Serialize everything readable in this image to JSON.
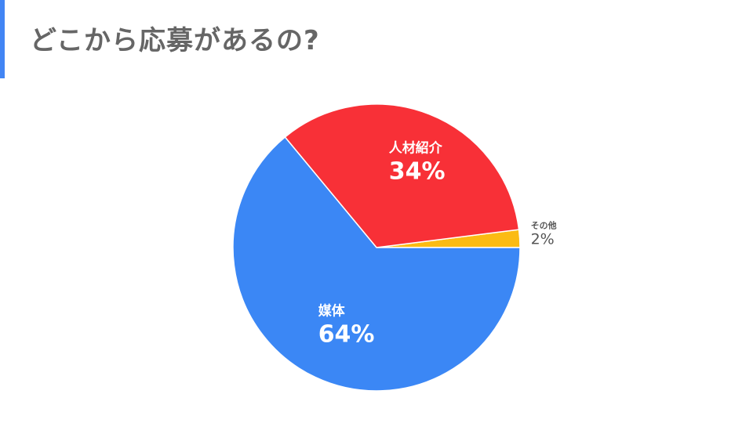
{
  "title": "どこから応募があるの?",
  "colors": {
    "accent": "#4285f4",
    "title_text": "#666666",
    "media": "#3b87f5",
    "agency": "#f83037",
    "other": "#fbbb13"
  },
  "chart_data": {
    "type": "pie",
    "title": "",
    "start": "3 o'clock, counter-clockwise",
    "slices": [
      {
        "label": "その他",
        "value": 2,
        "display": "2%",
        "color": "#fbbb13",
        "label_position": "outside"
      },
      {
        "label": "人材紹介",
        "value": 34,
        "display": "34%",
        "color": "#f83037",
        "label_position": "inside"
      },
      {
        "label": "媒体",
        "value": 64,
        "display": "64%",
        "color": "#3b87f5",
        "label_position": "inside"
      }
    ]
  }
}
